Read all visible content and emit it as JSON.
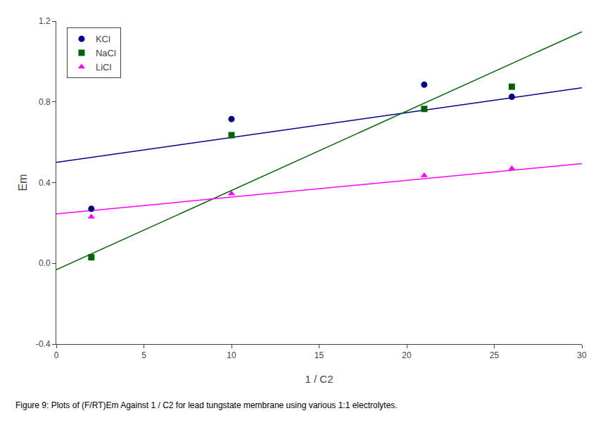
{
  "chart_data": {
    "type": "scatter",
    "xlabel": "1 / C2",
    "ylabel": "Em",
    "caption": "Figure 9: Plots of (F/RT)Em Against 1 / C2 for lead tungstate membrane using various 1:1 electrolytes.",
    "xlim": [
      0,
      30
    ],
    "ylim": [
      -0.4,
      1.2
    ],
    "xticks": [
      0,
      5,
      10,
      15,
      20,
      25,
      30
    ],
    "yticks": [
      -0.4,
      {
        "value": 0,
        "label": "0.0"
      },
      0.4,
      0.8,
      1.2
    ],
    "grid": false,
    "legend": "upper left",
    "series": [
      {
        "name": "KCl",
        "color": "#00008B",
        "marker": "circle",
        "x": [
          2,
          10,
          21,
          26
        ],
        "values": [
          0.27,
          0.715,
          0.885,
          0.825
        ],
        "trend_line": {
          "x": [
            0,
            30
          ],
          "values": [
            0.5,
            0.8699
          ]
        }
      },
      {
        "name": "NaCl",
        "color": "#006400",
        "marker": "square",
        "x": [
          2,
          10,
          21,
          26
        ],
        "values": [
          0.03,
          0.635,
          0.765,
          0.875
        ],
        "trend_line": {
          "x": [
            0,
            30
          ],
          "values": [
            -0.032,
            1.147
          ]
        }
      },
      {
        "name": "LiCl",
        "color": "#FF00FF",
        "marker": "triangle-up",
        "x": [
          2,
          10,
          21,
          26
        ],
        "values": [
          0.23,
          0.345,
          0.435,
          0.47
        ],
        "trend_line": {
          "x": [
            0,
            30
          ],
          "values": [
            0.245,
            0.494
          ]
        }
      }
    ]
  }
}
